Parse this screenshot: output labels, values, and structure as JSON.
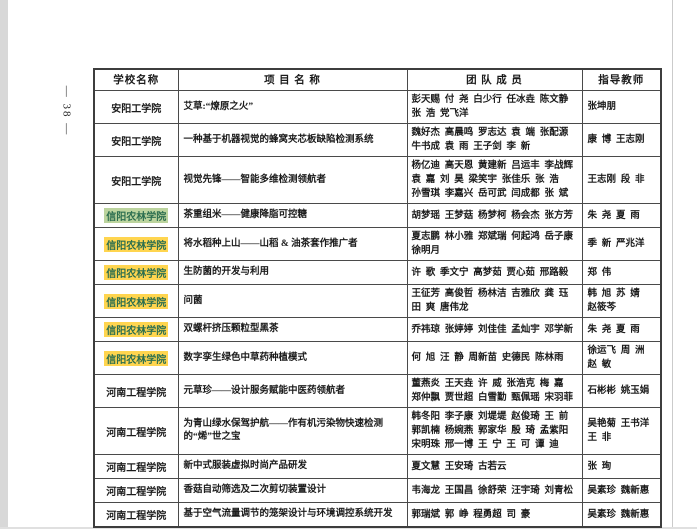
{
  "page": {
    "number_label": "— 38 —"
  },
  "colors": {
    "green_highlight_bg": "#bcd49e",
    "yellow_highlight_bg": "#ffd54f",
    "highlight_text": "#2c6e4f"
  },
  "table": {
    "headers": [
      {
        "label": "学校名称"
      },
      {
        "label": "项  目  名  称"
      },
      {
        "label": "团  队  成  员"
      },
      {
        "label": "指导教师"
      }
    ],
    "rows": [
      {
        "school": "安阳工学院",
        "highlight": "none",
        "project": "艾草:“燎原之火”",
        "team": [
          "彭天赐  付  尧  白少行  任冰垚  陈文静",
          "张  浩  党飞洋"
        ],
        "advisors": [
          "张坤朋"
        ]
      },
      {
        "school": "安阳工学院",
        "highlight": "none",
        "project": "一种基于机器视觉的蜂窝夹芯板缺陷检测系统",
        "team": [
          "魏好杰  高晨鸣  罗志达  袁  端  张配源",
          "牛书成  袁  雨  王子剑  李  新"
        ],
        "advisors": [
          "康  博  王志刚"
        ]
      },
      {
        "school": "安阳工学院",
        "highlight": "none",
        "project": "视觉先锋——智能多维检测领航者",
        "team": [
          "杨亿迪  高天恩  黄建新  吕运丰  李战辉",
          "袁  嘉  刘  昊  梁笑宇  张佳乐  张  浩",
          "孙雪琪  李嘉兴  岳可武  闫成都  张  斌"
        ],
        "advisors": [
          "王志刚  段  非"
        ]
      },
      {
        "school": "信阳农林学院",
        "highlight": "green",
        "project": "茶重组米——健康降脂可控糖",
        "team": [
          "胡梦瑶  王梦菇  杨梦柯  杨会杰  张方芳"
        ],
        "advisors": [
          "朱  尧  夏  雨"
        ]
      },
      {
        "school": "信阳农林学院",
        "highlight": "yellow",
        "project": "将水稻种上山——山稻 & 油茶套作推广者",
        "team": [
          "夏志鹏  林小雅  郑斌瑞  何起鸿  岳子康",
          "徐明月"
        ],
        "advisors": [
          "季  新  严兆洋"
        ]
      },
      {
        "school": "信阳农林学院",
        "highlight": "yellow",
        "project": "生防菌的开发与利用",
        "team": [
          "许  歌  季文宁  高梦茹  贾心茹  邢路毅"
        ],
        "advisors": [
          "郑  伟"
        ]
      },
      {
        "school": "信阳农林学院",
        "highlight": "yellow",
        "project": "问菌",
        "team": [
          "王征芳  高俊哲  杨林洁  吉雅欣  龚  珏",
          "田  爽  唐伟龙"
        ],
        "advisors": [
          "韩  旭  苏  婧",
          "赵筱芩"
        ]
      },
      {
        "school": "信阳农林学院",
        "highlight": "yellow",
        "project": "双螺杆挤压颗粒型黑茶",
        "team": [
          "乔祎琼  张婷婷  刘佳佳  孟灿宇  邓学新"
        ],
        "advisors": [
          "朱  尧  夏  雨"
        ]
      },
      {
        "school": "信阳农林学院",
        "highlight": "yellow",
        "project": "数字孪生绿色中草药种植模式",
        "team": [
          "何  旭  汪  静  周新苗  史德民  陈林雨"
        ],
        "advisors": [
          "徐运飞  周  洲",
          "赵  敏"
        ]
      },
      {
        "school": "河南工程学院",
        "highlight": "none",
        "project": "元草珍——设计服务赋能中医药领航者",
        "team": [
          "董燕炎  王天垚  许  威  张浩克  梅  嘉",
          "郑仲飘  贾世超  白雪勤  甄佩瑶  宋羽菲"
        ],
        "advisors": [
          "石彬彬  姚玉娟"
        ]
      },
      {
        "school": "河南工程学院",
        "highlight": "none",
        "project": "为青山绿水保驾护航——作有机污染物快速检测的“烯”世之宝",
        "team": [
          "韩冬阳  李子康  刘堤堤  赵俊琦  王  前",
          "郭凯楠  杨婉燕  郭家华  殷  琦  孟紫阳",
          "宋明珠  邢一博  王  宁  王  可  谭  迪"
        ],
        "advisors": [
          "吴艳菊  王书洋",
          "王  非"
        ]
      },
      {
        "school": "河南工程学院",
        "highlight": "none",
        "project": "新中式服装虚拟时尚产品研发",
        "team": [
          "夏文慧  王安琦  古若云"
        ],
        "advisors": [
          "张  珣"
        ]
      },
      {
        "school": "河南工程学院",
        "highlight": "none",
        "project": "香菇自动筛选及二次剪切装置设计",
        "team": [
          "韦海龙  王国昌  徐舒荣  汪宇琦  刘青松"
        ],
        "advisors": [
          "吴素珍  魏新惠"
        ]
      },
      {
        "school": "河南工程学院",
        "highlight": "none",
        "project": "基于空气流量调节的笼架设计与环境调控系统开发",
        "team": [
          "郭瑞斌  郭  峥  程勇超  司  豪"
        ],
        "advisors": [
          "吴素珍  魏新惠"
        ]
      }
    ]
  }
}
